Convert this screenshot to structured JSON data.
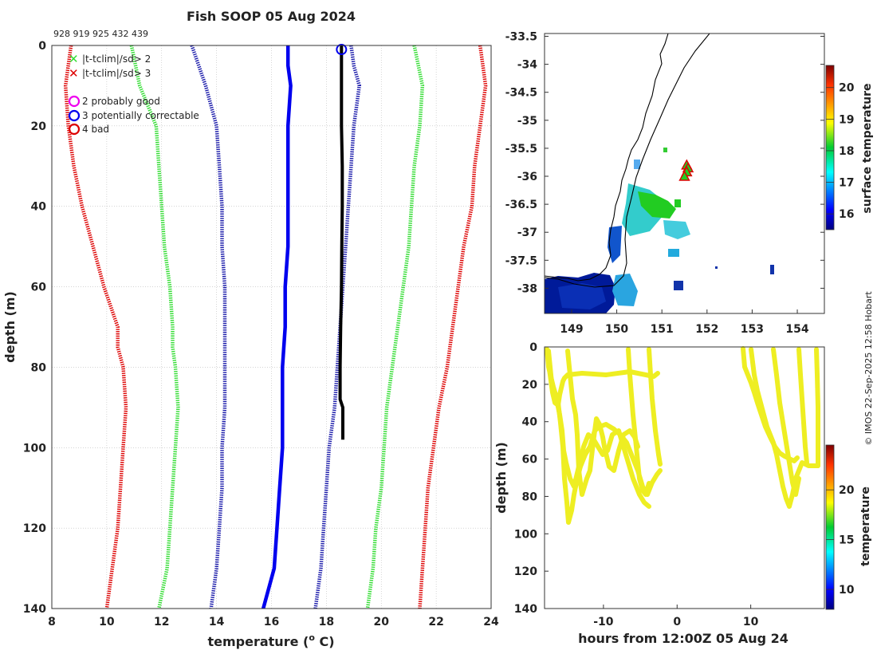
{
  "title": "Fish SOOP 05 Aug 2024",
  "profile_ids": "928 919 925 432 439",
  "credit": "© IMOS 22-Sep-2025 12:58 Hobart",
  "legend": {
    "flag2": "|t-tclim|/sd> 2",
    "flag3": "|t-tclim|/sd> 3",
    "qc2": "2  probably good",
    "qc3": "3  potentially correctable",
    "qc4": "4  bad"
  },
  "colors": {
    "red": "#dd0000",
    "green": "#33dd33",
    "darkblue": "#1a1aaa",
    "blue": "#0000ee",
    "black": "#000000",
    "yellow": "#eeee22",
    "magenta": "#ee00ee",
    "grid": "#bbbbbb"
  },
  "chart_data": [
    {
      "type": "line",
      "name": "profile",
      "xlabel": "temperature (",
      "xlabel_sup": "o",
      "xlabel_end": " C)",
      "ylabel": "depth (m)",
      "xlim": [
        8,
        24
      ],
      "ylim": [
        140,
        0
      ],
      "xticks": [
        8,
        10,
        12,
        14,
        16,
        18,
        20,
        22,
        24
      ],
      "yticks": [
        0,
        20,
        40,
        60,
        80,
        100,
        120,
        140
      ],
      "series": [
        {
          "name": "clim-3sd",
          "style": "dotted",
          "color": "#dd0000",
          "depth": [
            0,
            10,
            20,
            30,
            40,
            50,
            60,
            70,
            75,
            80,
            90,
            100,
            110,
            120,
            130,
            140
          ],
          "temp": [
            8.7,
            8.5,
            8.6,
            8.8,
            9.1,
            9.5,
            9.9,
            10.4,
            10.4,
            10.6,
            10.7,
            10.6,
            10.5,
            10.4,
            10.2,
            10.0
          ]
        },
        {
          "name": "clim-2sd",
          "style": "dotted",
          "color": "#33dd33",
          "depth": [
            0,
            10,
            20,
            30,
            40,
            50,
            60,
            70,
            75,
            80,
            90,
            100,
            110,
            120,
            130,
            140
          ],
          "temp": [
            10.9,
            11.2,
            11.8,
            11.9,
            12.0,
            12.1,
            12.3,
            12.4,
            12.4,
            12.5,
            12.6,
            12.5,
            12.4,
            12.3,
            12.2,
            11.9
          ]
        },
        {
          "name": "clim-1sd",
          "style": "dotted",
          "color": "#1a1aaa",
          "depth": [
            0,
            10,
            20,
            30,
            40,
            50,
            60,
            70,
            80,
            90,
            100,
            110,
            120,
            130,
            140
          ],
          "temp": [
            13.1,
            13.6,
            14.0,
            14.1,
            14.2,
            14.2,
            14.3,
            14.3,
            14.3,
            14.3,
            14.2,
            14.2,
            14.1,
            14.0,
            13.8
          ]
        },
        {
          "name": "clim+1sd",
          "style": "dotted",
          "color": "#1a1aaa",
          "depth": [
            0,
            5,
            10,
            15,
            20,
            30,
            40,
            50,
            60,
            70,
            80,
            90,
            100,
            110,
            120,
            130,
            140
          ],
          "temp": [
            18.9,
            19.0,
            19.2,
            19.1,
            19.0,
            18.9,
            18.8,
            18.7,
            18.6,
            18.5,
            18.4,
            18.3,
            18.1,
            18.0,
            17.9,
            17.8,
            17.6
          ]
        },
        {
          "name": "clim+2sd",
          "style": "dotted",
          "color": "#33dd33",
          "depth": [
            0,
            10,
            20,
            30,
            40,
            50,
            60,
            70,
            80,
            90,
            100,
            110,
            120,
            130,
            140
          ],
          "temp": [
            21.2,
            21.5,
            21.4,
            21.2,
            21.1,
            21.0,
            20.8,
            20.6,
            20.4,
            20.2,
            20.1,
            20.0,
            19.8,
            19.7,
            19.5
          ]
        },
        {
          "name": "clim+3sd",
          "style": "dotted",
          "color": "#dd0000",
          "depth": [
            0,
            10,
            20,
            30,
            40,
            50,
            60,
            70,
            80,
            90,
            100,
            110,
            120,
            130,
            140
          ],
          "temp": [
            23.6,
            23.8,
            23.6,
            23.4,
            23.3,
            23.0,
            22.8,
            22.6,
            22.4,
            22.1,
            21.9,
            21.7,
            21.6,
            21.5,
            21.4
          ]
        },
        {
          "name": "climatology",
          "style": "solid-thick",
          "color": "#0000ee",
          "depth": [
            0,
            5,
            10,
            20,
            30,
            40,
            50,
            60,
            70,
            80,
            90,
            100,
            110,
            120,
            130,
            140
          ],
          "temp": [
            16.6,
            16.6,
            16.7,
            16.6,
            16.6,
            16.6,
            16.6,
            16.5,
            16.5,
            16.4,
            16.4,
            16.4,
            16.3,
            16.2,
            16.1,
            15.7
          ]
        },
        {
          "name": "observed",
          "style": "solid-thick",
          "color": "#000000",
          "depth": [
            0,
            10,
            20,
            30,
            40,
            50,
            60,
            70,
            80,
            88,
            90,
            98
          ],
          "temp": [
            18.55,
            18.55,
            18.55,
            18.58,
            18.58,
            18.56,
            18.55,
            18.52,
            18.5,
            18.5,
            18.6,
            18.6
          ]
        }
      ],
      "qc_marker": {
        "temp": 18.55,
        "depth": 1,
        "qc": 3
      }
    },
    {
      "type": "scatter",
      "name": "map",
      "colorbar_label": "surface temperature",
      "xlim": [
        148.4,
        154.6
      ],
      "ylim": [
        -38.45,
        -33.45
      ],
      "xticks": [
        149,
        150,
        151,
        152,
        153,
        154
      ],
      "yticks": [
        -33.5,
        -34,
        -34.5,
        -35,
        -35.5,
        -36,
        -36.5,
        -37,
        -37.5,
        -38
      ],
      "ytick_labels": [
        "-33.5",
        "-34",
        "-34.5",
        "-35",
        "-35.5",
        "-36",
        "-36.5",
        "-37",
        "-37.5",
        "-38"
      ],
      "colorbar_ticks": [
        16,
        17,
        18,
        19,
        20
      ],
      "colorbar_range": [
        15.5,
        20.7
      ],
      "track": [
        [
          151.55,
          -35.8
        ],
        [
          151.58,
          -35.85
        ],
        [
          151.55,
          -35.92
        ],
        [
          151.5,
          -36.0
        ]
      ]
    },
    {
      "type": "scatter",
      "name": "timeseries",
      "xlabel": "hours from 12:00Z 05 Aug 24",
      "ylabel": "depth (m)",
      "colorbar_label": "temperature",
      "xlim": [
        -18,
        20
      ],
      "ylim": [
        140,
        0
      ],
      "xticks": [
        -10,
        0,
        10
      ],
      "xtick_labels": [
        "-10",
        "0",
        "10"
      ],
      "yticks": [
        0,
        20,
        40,
        60,
        80,
        100,
        120,
        140
      ],
      "colorbar_ticks": [
        10,
        15,
        20
      ],
      "colorbar_range": [
        8,
        24.5
      ]
    }
  ]
}
